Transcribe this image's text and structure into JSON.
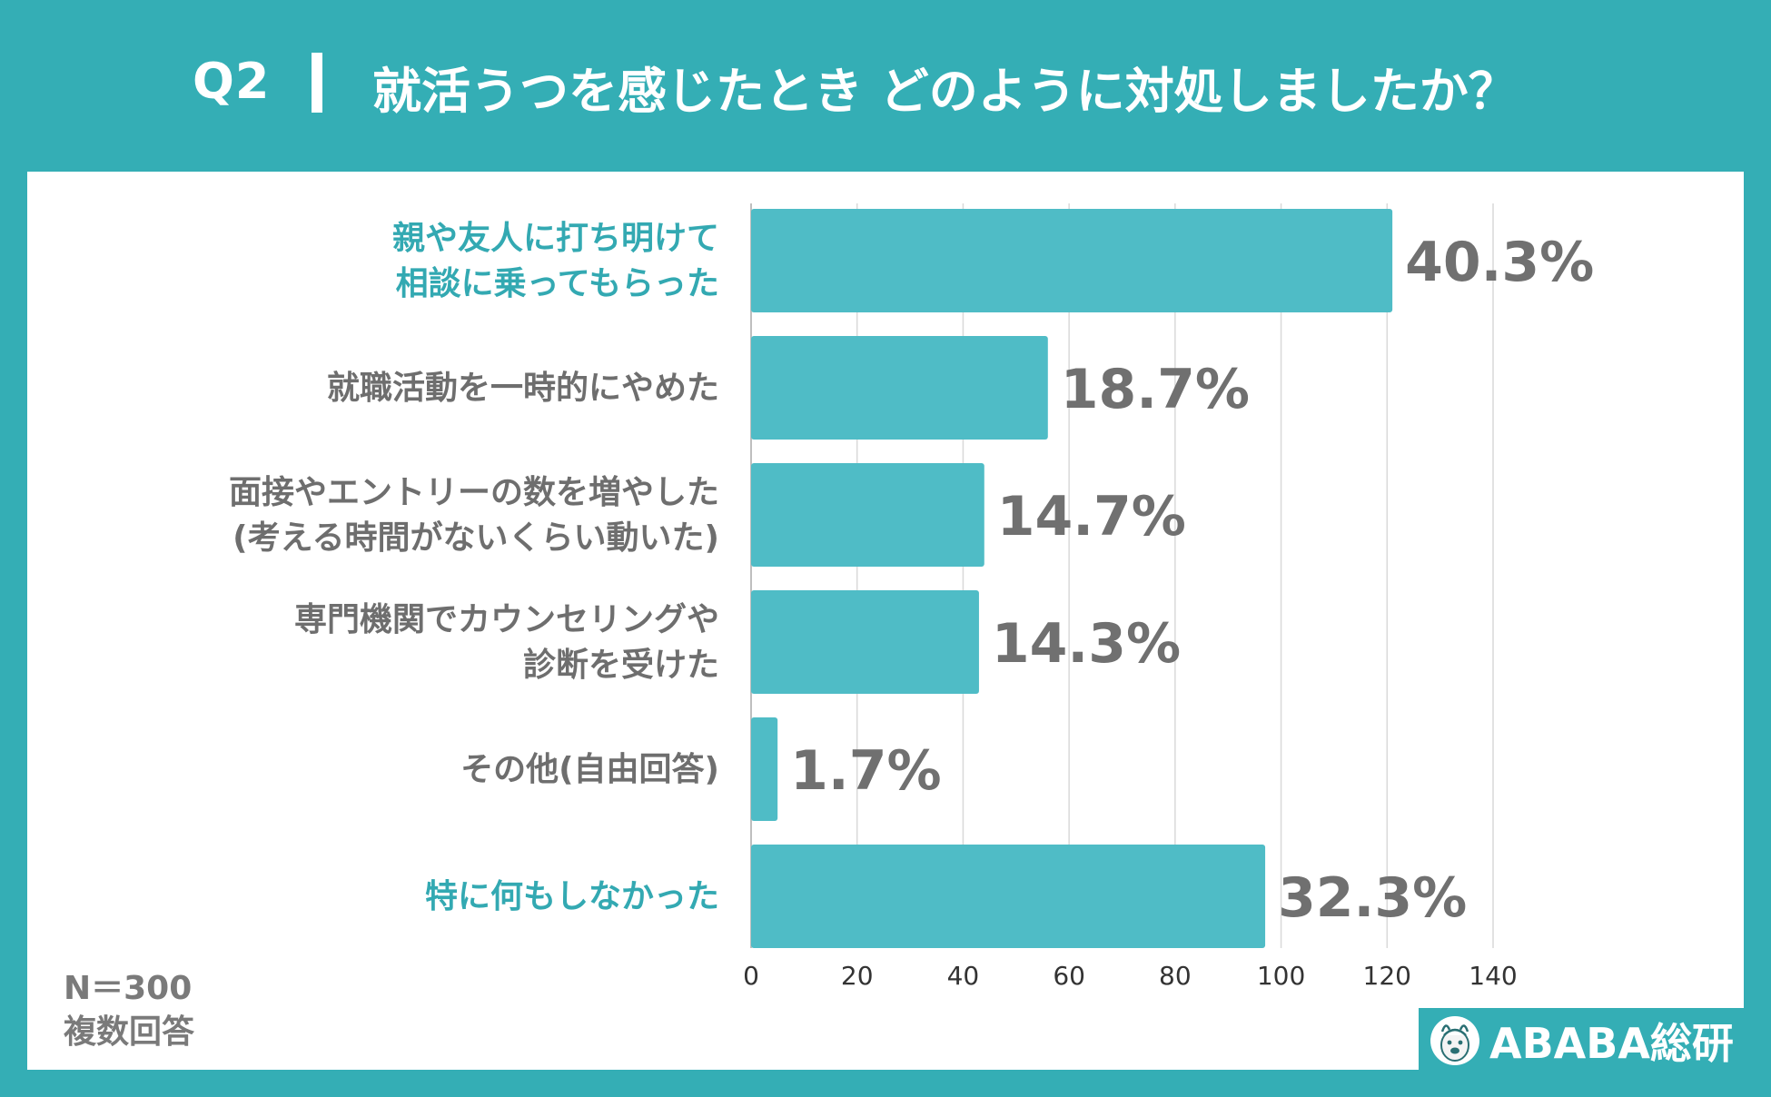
{
  "header": {
    "q_label": "Q2",
    "title": "就活うつを感じたとき どのように対処しましたか？"
  },
  "notes": {
    "n": "N＝300",
    "multi": "複数回答"
  },
  "logo": {
    "text": "ABABA総研",
    "icon": "alpaca-icon"
  },
  "colors": {
    "background": "#34aeb5",
    "bar": "#4fbcc6",
    "highlight_label": "#33a9b2",
    "label": "#6e6e6e",
    "value": "#707070",
    "grid": "#d9d9d9"
  },
  "chart_data": {
    "type": "bar",
    "orientation": "horizontal",
    "categories": [
      [
        "親や友人に打ち明けて",
        "相談に乗ってもらった"
      ],
      [
        "就職活動を一時的にやめた"
      ],
      [
        "面接やエントリーの数を増やした",
        "(考える時間がないくらい動いた)"
      ],
      [
        "専門機関でカウンセリングや",
        "診断を受けた"
      ],
      [
        "その他(自由回答)"
      ],
      [
        "特に何もしなかった"
      ]
    ],
    "highlight": [
      true,
      false,
      false,
      false,
      false,
      true
    ],
    "values": [
      121,
      56,
      44,
      43,
      5,
      97
    ],
    "value_labels": [
      "40.3%",
      "18.7%",
      "14.7%",
      "14.3%",
      "1.7%",
      "32.3%"
    ],
    "xlim": [
      0,
      140
    ],
    "xticks": [
      "0",
      "20",
      "40",
      "60",
      "80",
      "100",
      "120",
      "140"
    ],
    "grid": true,
    "title": "",
    "xlabel": "",
    "ylabel": ""
  }
}
